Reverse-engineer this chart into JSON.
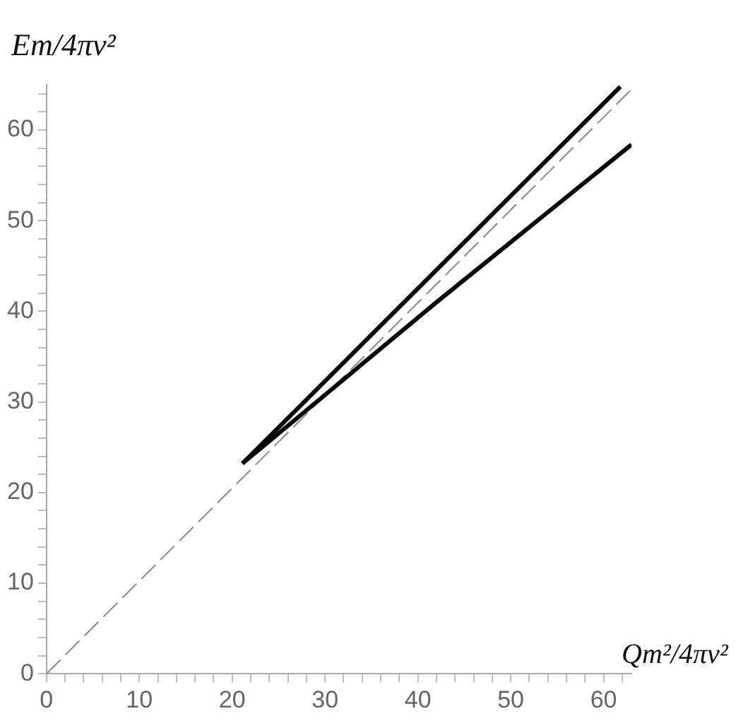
{
  "chart_data": {
    "type": "line",
    "xlabel": "Qm²/4πv²",
    "ylabel": "Em/4πv²",
    "xlim": [
      0,
      63
    ],
    "ylim": [
      0,
      65
    ],
    "xticks": [
      0,
      {
        "value": 2,
        "label": null
      },
      {
        "value": 4,
        "label": null
      },
      {
        "value": 6,
        "label": null
      },
      {
        "value": 8,
        "label": null
      },
      10,
      {
        "value": 12,
        "label": null
      },
      {
        "value": 14,
        "label": null
      },
      {
        "value": 16,
        "label": null
      },
      {
        "value": 18,
        "label": null
      },
      20,
      {
        "value": 22,
        "label": null
      },
      {
        "value": 24,
        "label": null
      },
      {
        "value": 26,
        "label": null
      },
      {
        "value": 28,
        "label": null
      },
      30,
      {
        "value": 32,
        "label": null
      },
      {
        "value": 34,
        "label": null
      },
      {
        "value": 36,
        "label": null
      },
      {
        "value": 38,
        "label": null
      },
      40,
      {
        "value": 42,
        "label": null
      },
      {
        "value": 44,
        "label": null
      },
      {
        "value": 46,
        "label": null
      },
      {
        "value": 48,
        "label": null
      },
      50,
      {
        "value": 52,
        "label": null
      },
      {
        "value": 54,
        "label": null
      },
      {
        "value": 56,
        "label": null
      },
      {
        "value": 58,
        "label": null
      },
      60,
      {
        "value": 62,
        "label": null
      }
    ],
    "yticks": [
      0,
      {
        "value": 2,
        "label": null
      },
      {
        "value": 4,
        "label": null
      },
      {
        "value": 6,
        "label": null
      },
      {
        "value": 8,
        "label": null
      },
      10,
      {
        "value": 12,
        "label": null
      },
      {
        "value": 14,
        "label": null
      },
      {
        "value": 16,
        "label": null
      },
      {
        "value": 18,
        "label": null
      },
      20,
      {
        "value": 22,
        "label": null
      },
      {
        "value": 24,
        "label": null
      },
      {
        "value": 26,
        "label": null
      },
      {
        "value": 28,
        "label": null
      },
      30,
      {
        "value": 32,
        "label": null
      },
      {
        "value": 34,
        "label": null
      },
      {
        "value": 36,
        "label": null
      },
      {
        "value": 38,
        "label": null
      },
      40,
      {
        "value": 42,
        "label": null
      },
      {
        "value": 44,
        "label": null
      },
      {
        "value": 46,
        "label": null
      },
      {
        "value": 48,
        "label": null
      },
      50,
      {
        "value": 52,
        "label": null
      },
      {
        "value": 54,
        "label": null
      },
      {
        "value": 56,
        "label": null
      },
      {
        "value": 58,
        "label": null
      },
      60,
      {
        "value": 62,
        "label": null
      },
      {
        "value": 64,
        "label": null
      }
    ],
    "grid": false,
    "legend": false,
    "marker": "none",
    "series": [
      {
        "color": "#000000",
        "x": [
          21.1,
          61.8
        ],
        "values": [
          23.2,
          64.8
        ]
      },
      {
        "color": "#000000",
        "x": [
          21.1,
          42,
          63
        ],
        "values": [
          23.2,
          41.0,
          58.4
        ]
      },
      {
        "color": "#888888",
        "line_style": "dashed",
        "x": [
          0,
          63
        ],
        "values": [
          0,
          64.5
        ]
      }
    ]
  }
}
